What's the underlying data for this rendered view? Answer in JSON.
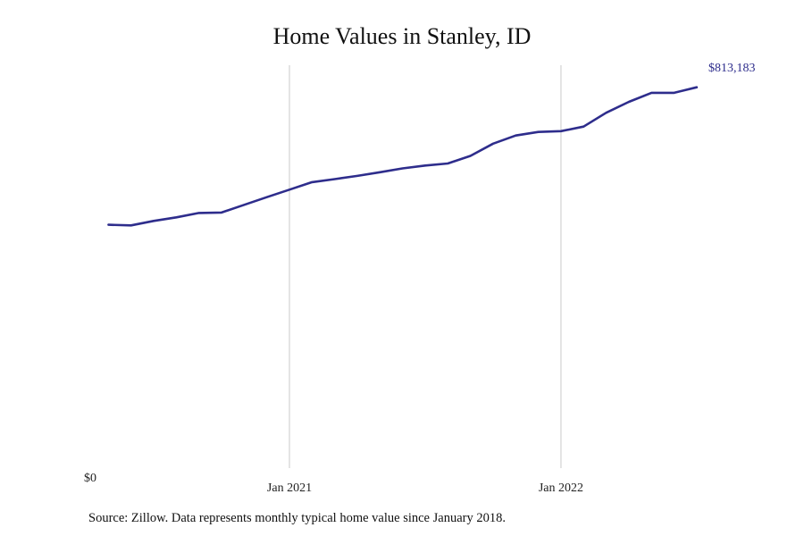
{
  "chart_data": {
    "type": "line",
    "title": "Home Values in Stanley, ID",
    "xlabel": "",
    "ylabel": "",
    "x_ticks": [
      "Jan 2021",
      "Jan 2022"
    ],
    "y_ticks": [
      "$0"
    ],
    "ylim": [
      0,
      813183
    ],
    "grid": "vertical lines at x ticks",
    "line_color": "#2e2d8c",
    "series": [
      {
        "x": [
          "2020-05",
          "2020-06",
          "2020-07",
          "2020-08",
          "2020-09",
          "2020-10",
          "2020-11",
          "2020-12",
          "2021-01",
          "2021-02",
          "2021-03",
          "2021-04",
          "2021-05",
          "2021-06",
          "2021-07",
          "2021-08",
          "2021-09",
          "2021-10",
          "2021-11",
          "2021-12",
          "2022-01",
          "2022-02",
          "2022-03",
          "2022-04",
          "2022-05",
          "2022-06",
          "2022-07"
        ],
        "values": [
          493400,
          492000,
          501200,
          508300,
          517200,
          518200,
          533700,
          549300,
          564600,
          579700,
          585900,
          592500,
          599900,
          607700,
          613400,
          617500,
          632900,
          657800,
          674300,
          681500,
          683200,
          692300,
          720500,
          742500,
          760800,
          760800,
          772000
        ],
        "end_label": "$813,183"
      }
    ]
  },
  "source": "Source: Zillow. Data represents monthly typical home value since January 2018."
}
